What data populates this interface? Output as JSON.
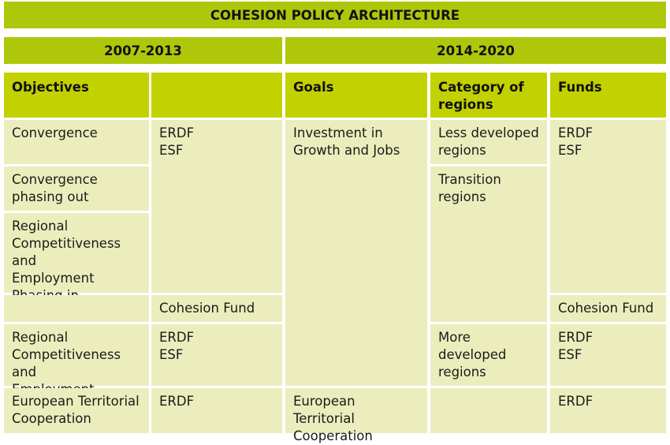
{
  "title": "COHESION POLICY ARCHITECTURE",
  "periods": {
    "left": "2007-2013",
    "right": "2014-2020"
  },
  "headers": {
    "objectives": "Objectives",
    "funds_left": "",
    "goals": "Goals",
    "category": "Category of\nregions",
    "funds": "Funds"
  },
  "left": {
    "objectives": [
      "Convergence",
      "Convergence\nphasing out",
      "Regional\nCompetitiveness and\nEmployment\nPhasing in",
      "",
      "Regional\nCompetitiveness and\nEmployment",
      "European Territorial\nCooperation"
    ],
    "funds": [
      "ERDF\nESF",
      "Cohesion Fund",
      "ERDF\nESF",
      "ERDF"
    ]
  },
  "right": {
    "goals": [
      "Investment in\nGrowth and Jobs",
      "European Territorial\nCooperation"
    ],
    "categories": [
      "Less developed\nregions",
      "Transition\nregions",
      "More developed\nregions",
      ""
    ],
    "funds": [
      "ERDF\nESF",
      "Cohesion Fund",
      "ERDF\nESF",
      "ERDF"
    ]
  }
}
